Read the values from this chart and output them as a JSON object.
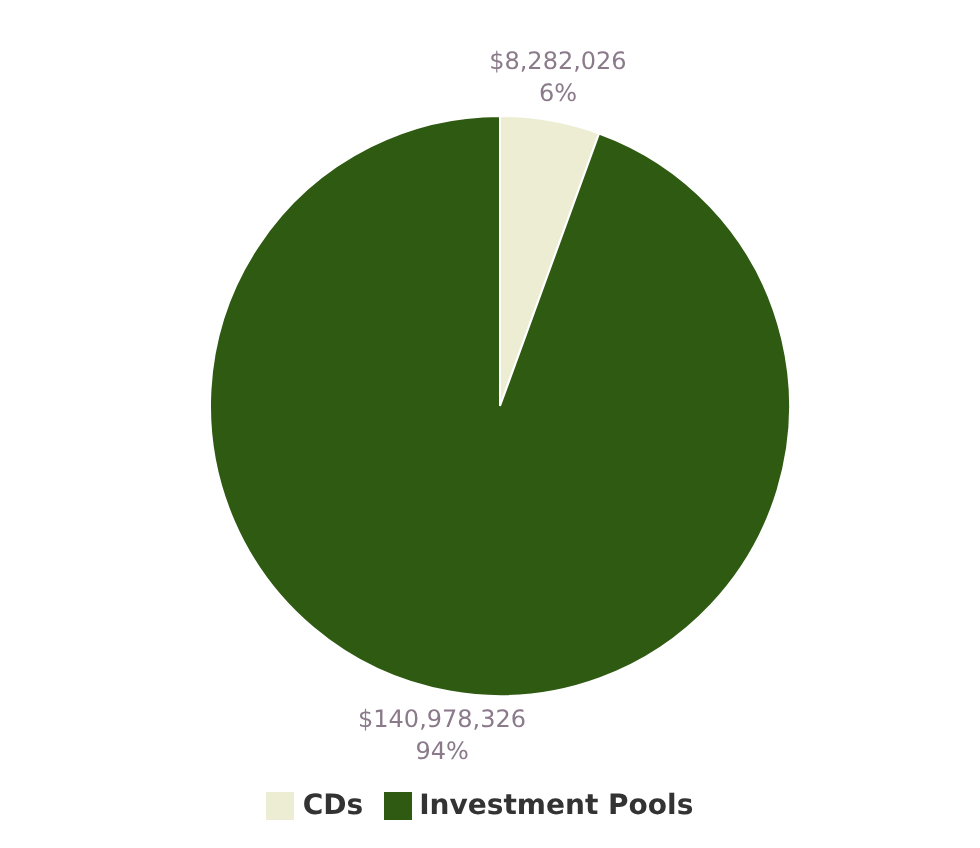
{
  "chart_data": {
    "type": "pie",
    "categories": [
      "CDs",
      "Investment Pools"
    ],
    "values": [
      8282026,
      140978326
    ],
    "colors": [
      "#ecedd2",
      "#2f5a12"
    ],
    "value_labels": [
      "$8,282,026\n6%",
      "$140,978,326\n94%"
    ],
    "legend": "bottom"
  }
}
